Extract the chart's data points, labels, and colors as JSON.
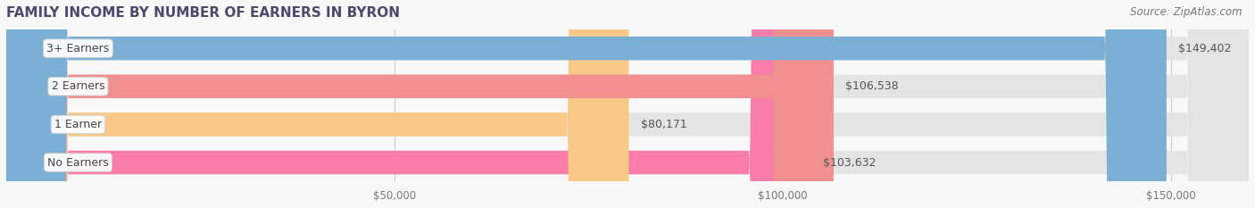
{
  "title": "FAMILY INCOME BY NUMBER OF EARNERS IN BYRON",
  "source": "Source: ZipAtlas.com",
  "categories": [
    "No Earners",
    "1 Earner",
    "2 Earners",
    "3+ Earners"
  ],
  "values": [
    103632,
    80171,
    106538,
    149402
  ],
  "labels": [
    "$103,632",
    "$80,171",
    "$106,538",
    "$149,402"
  ],
  "bar_colors": [
    "#f87daa",
    "#f9c98a",
    "#f09090",
    "#7bafd4"
  ],
  "bar_height": 0.62,
  "background_color": "#f0f0f0",
  "bar_bg_color": "#e8e8e8",
  "xlim": [
    0,
    160000
  ],
  "xticks": [
    50000,
    100000,
    150000
  ],
  "xtick_labels": [
    "$50,000",
    "$100,000",
    "$150,000"
  ],
  "title_fontsize": 11,
  "label_fontsize": 9,
  "tick_fontsize": 8.5,
  "source_fontsize": 8.5,
  "title_color": "#4a4a6a",
  "label_color": "#555555",
  "tick_color": "#777777",
  "source_color": "#777777"
}
